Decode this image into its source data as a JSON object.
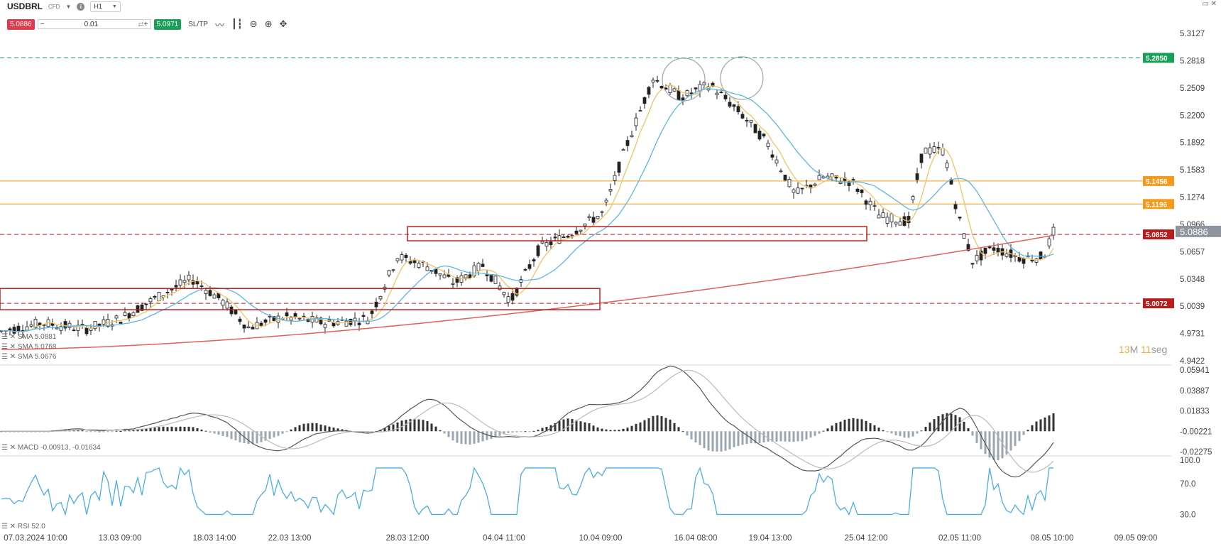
{
  "header": {
    "symbol": "USDBRL",
    "type": "CFD",
    "timeframe": "H1",
    "sell": "5.0886",
    "buy": "5.0971",
    "volume": "0.01",
    "sltp": "SL/TP"
  },
  "timer": {
    "minutes": "13",
    "min_unit": "M",
    "seconds": "11",
    "sec_unit": "seg"
  },
  "indicators": {
    "sma_lines": [
      "SMA 5.0881",
      "SMA 5.0768",
      "SMA 5.0676"
    ],
    "macd": "MACD -0.00913, -0.01634",
    "rsi": "RSI 52.0"
  },
  "chart_data": [
    {
      "type": "candlestick",
      "price_axis": [
        "5.3127",
        "5.2818",
        "5.2509",
        "5.2200",
        "5.1892",
        "5.1583",
        "5.1274",
        "5.0966",
        "5.0657",
        "5.0348",
        "5.0039",
        "4.9731",
        "4.9422"
      ],
      "x_labels": [
        "07.03.2024 10:00",
        "13.03 09:00",
        "18.03 14:00",
        "22.03 13:00",
        "28.03 12:00",
        "04.04 11:00",
        "10.04 09:00",
        "16.04 08:00",
        "19.04 13:00",
        "25.04 12:00",
        "02.05 11:00",
        "08.05 10:00",
        "09.05 09:00"
      ],
      "current_price": "5.0886",
      "levels": [
        {
          "value": "5.2850",
          "style": "dashed",
          "color": "#18a057"
        },
        {
          "value": "5.1456",
          "style": "solid",
          "color": "#f49b1c"
        },
        {
          "value": "5.1196",
          "style": "solid",
          "color": "#f49b1c"
        },
        {
          "value": "5.0852",
          "style": "dashed",
          "color": "#b81d1d"
        },
        {
          "value": "5.0072",
          "style": "dashed",
          "color": "#b81d1d"
        }
      ]
    },
    {
      "type": "histogram",
      "name": "MACD",
      "axis": [
        "0.05941",
        "0.03887",
        "0.01833",
        "-0.00221",
        "-0.02275"
      ]
    },
    {
      "type": "line",
      "name": "RSI",
      "axis": [
        "100.0",
        "70.0",
        "30.0"
      ]
    }
  ],
  "colors": {
    "sell": "#e2394b",
    "buy": "#18a057",
    "sma_fast": "#f4c266",
    "sma_mid": "#5ab8e6",
    "sma_slow": "#e0605a",
    "rsi": "#4aaee8"
  }
}
